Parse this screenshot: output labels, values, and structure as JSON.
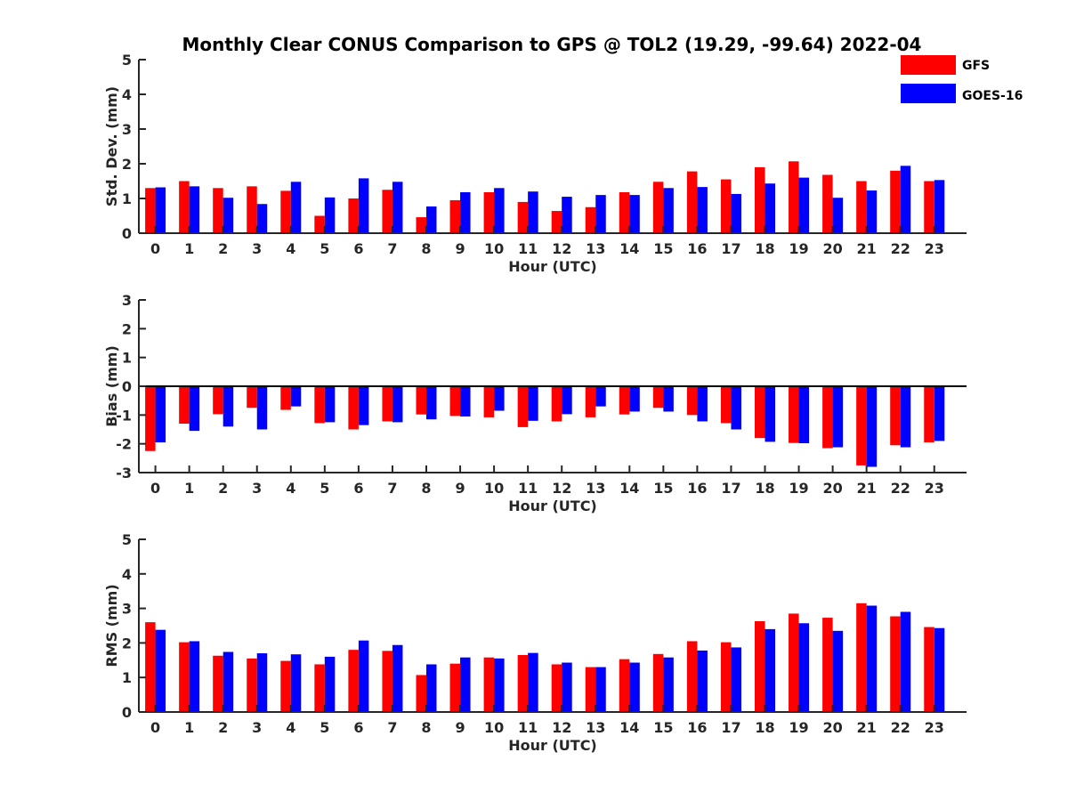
{
  "title": "Monthly Clear CONUS Comparison to GPS @ TOL2 (19.29, -99.64) 2022-04",
  "legend": [
    {
      "label": "GFS",
      "color": "#ff0000"
    },
    {
      "label": "GOES-16",
      "color": "#0000ff"
    }
  ],
  "chart_data": [
    {
      "type": "bar",
      "title": "Monthly Clear CONUS Comparison to GPS @ TOL2 (19.29, -99.64) 2022-04",
      "xlabel": "Hour (UTC)",
      "ylabel": "Std. Dev. (mm)",
      "ylim": [
        0,
        5
      ],
      "yticks": [
        "0",
        "1",
        "2",
        "3",
        "4",
        "5"
      ],
      "categories": [
        "0",
        "1",
        "2",
        "3",
        "4",
        "5",
        "6",
        "7",
        "8",
        "9",
        "10",
        "11",
        "12",
        "13",
        "14",
        "15",
        "16",
        "17",
        "18",
        "19",
        "20",
        "21",
        "22",
        "23"
      ],
      "series": [
        {
          "name": "GFS",
          "color": "#ff0000",
          "values": [
            1.3,
            1.5,
            1.3,
            1.35,
            1.22,
            0.5,
            1.0,
            1.25,
            0.46,
            0.95,
            1.18,
            0.9,
            0.64,
            0.75,
            1.18,
            1.48,
            1.78,
            1.55,
            1.9,
            2.07,
            1.68,
            1.5,
            1.8,
            1.5
          ]
        },
        {
          "name": "GOES-16",
          "color": "#0000ff",
          "values": [
            1.32,
            1.35,
            1.02,
            0.84,
            1.48,
            1.03,
            1.58,
            1.48,
            0.77,
            1.18,
            1.3,
            1.2,
            1.05,
            1.1,
            1.1,
            1.3,
            1.33,
            1.13,
            1.43,
            1.6,
            1.02,
            1.23,
            1.94,
            1.53
          ]
        }
      ]
    },
    {
      "type": "bar",
      "xlabel": "Hour (UTC)",
      "ylabel": "Bias (mm)",
      "ylim": [
        -3,
        3
      ],
      "yticks": [
        "-3",
        "-2",
        "-1",
        "0",
        "1",
        "2",
        "3"
      ],
      "categories": [
        "0",
        "1",
        "2",
        "3",
        "4",
        "5",
        "6",
        "7",
        "8",
        "9",
        "10",
        "11",
        "12",
        "13",
        "14",
        "15",
        "16",
        "17",
        "18",
        "19",
        "20",
        "21",
        "22",
        "23"
      ],
      "series": [
        {
          "name": "GFS",
          "color": "#ff0000",
          "values": [
            -2.25,
            -1.3,
            -0.97,
            -0.75,
            -0.82,
            -1.28,
            -1.5,
            -1.22,
            -0.98,
            -1.03,
            -1.08,
            -1.42,
            -1.22,
            -1.08,
            -0.98,
            -0.75,
            -1.0,
            -1.28,
            -1.8,
            -1.97,
            -2.15,
            -2.75,
            -2.05,
            -1.95
          ]
        },
        {
          "name": "GOES-16",
          "color": "#0000ff",
          "values": [
            -1.95,
            -1.55,
            -1.4,
            -1.5,
            -0.7,
            -1.25,
            -1.35,
            -1.25,
            -1.15,
            -1.05,
            -0.85,
            -1.2,
            -0.97,
            -0.7,
            -0.88,
            -0.88,
            -1.22,
            -1.5,
            -1.93,
            -1.98,
            -2.12,
            -2.8,
            -2.12,
            -1.9
          ]
        }
      ]
    },
    {
      "type": "bar",
      "xlabel": "Hour (UTC)",
      "ylabel": "RMS (mm)",
      "ylim": [
        0,
        5
      ],
      "yticks": [
        "0",
        "1",
        "2",
        "3",
        "4",
        "5"
      ],
      "categories": [
        "0",
        "1",
        "2",
        "3",
        "4",
        "5",
        "6",
        "7",
        "8",
        "9",
        "10",
        "11",
        "12",
        "13",
        "14",
        "15",
        "16",
        "17",
        "18",
        "19",
        "20",
        "21",
        "22",
        "23"
      ],
      "series": [
        {
          "name": "GFS",
          "color": "#ff0000",
          "values": [
            2.6,
            2.02,
            1.63,
            1.55,
            1.48,
            1.38,
            1.8,
            1.77,
            1.07,
            1.4,
            1.58,
            1.65,
            1.38,
            1.3,
            1.53,
            1.68,
            2.05,
            2.02,
            2.63,
            2.85,
            2.73,
            3.15,
            2.77,
            2.46
          ]
        },
        {
          "name": "GOES-16",
          "color": "#0000ff",
          "values": [
            2.38,
            2.05,
            1.74,
            1.7,
            1.67,
            1.6,
            2.07,
            1.94,
            1.38,
            1.58,
            1.55,
            1.71,
            1.43,
            1.3,
            1.43,
            1.58,
            1.78,
            1.87,
            2.4,
            2.57,
            2.35,
            3.08,
            2.9,
            2.43
          ]
        }
      ]
    }
  ]
}
